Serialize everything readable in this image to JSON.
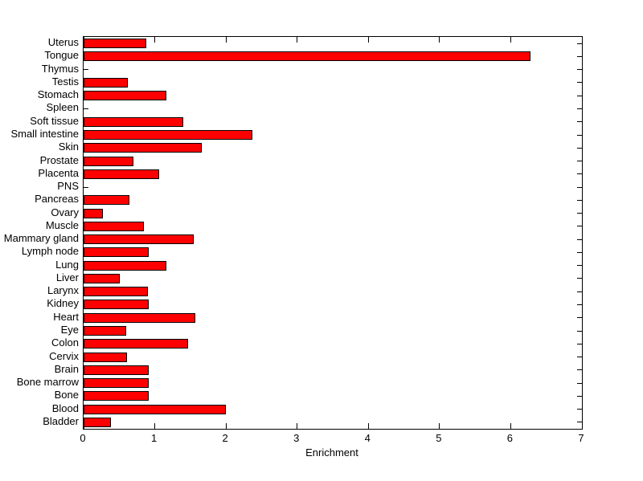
{
  "chart_data": {
    "type": "bar",
    "orientation": "horizontal",
    "title": "",
    "xlabel": "Enrichment",
    "ylabel": "",
    "xlim": [
      0,
      7
    ],
    "xticks": [
      "0",
      "1",
      "2",
      "3",
      "4",
      "5",
      "6",
      "7"
    ],
    "grid": false,
    "legend": null,
    "bar_color": "#ff0000",
    "bar_edge_color": "#000000",
    "axis_color": "#000000",
    "background_color": "#ffffff",
    "categories": [
      "Uterus",
      "Tongue",
      "Thymus",
      "Testis",
      "Stomach",
      "Spleen",
      "Soft tissue",
      "Small intestine",
      "Skin",
      "Prostate",
      "Placenta",
      "PNS",
      "Pancreas",
      "Ovary",
      "Muscle",
      "Mammary gland",
      "Lymph node",
      "Lung",
      "Liver",
      "Larynx",
      "Kidney",
      "Heart",
      "Eye",
      "Colon",
      "Cervix",
      "Brain",
      "Bone marrow",
      "Bone",
      "Blood",
      "Bladder"
    ],
    "values": [
      0.88,
      6.28,
      0,
      0.62,
      1.16,
      0,
      1.4,
      2.37,
      1.66,
      0.7,
      1.06,
      0,
      0.64,
      0.27,
      0.85,
      1.55,
      0.91,
      1.16,
      0.51,
      0.9,
      0.91,
      1.57,
      0.6,
      1.47,
      0.61,
      0.92,
      0.92,
      0.91,
      2.0,
      0.38
    ]
  }
}
